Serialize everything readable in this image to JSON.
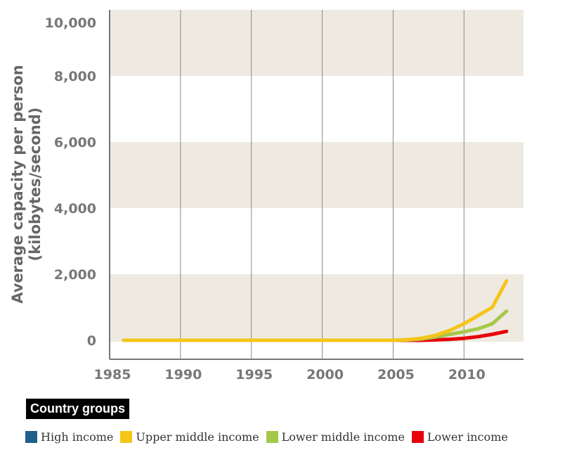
{
  "chart_data": {
    "type": "line",
    "title": "",
    "xlabel": "",
    "ylabel": [
      "Average capacity per person",
      "(kilobytes/second)"
    ],
    "xlim": [
      1985,
      2014.2
    ],
    "ylim": [
      0,
      10000
    ],
    "xticks": [
      1985,
      1990,
      1995,
      2000,
      2005,
      2010
    ],
    "xtick_labels": [
      "1985",
      "1990",
      "1995",
      "2000",
      "2005",
      "2010"
    ],
    "yticks": [
      0,
      2000,
      4000,
      6000,
      8000,
      10000
    ],
    "ytick_labels": [
      "0",
      "2,000",
      "4,000",
      "6,000",
      "8,000",
      "10,000"
    ],
    "grid": "vertical lines at x ticks; alternating shaded horizontal bands",
    "band_color": "#eeeae1",
    "legend_title": "Country groups",
    "legend_placement": "bottom",
    "series": [
      {
        "name": "High income",
        "color": "#1f5f8b",
        "x": [],
        "y": []
      },
      {
        "name": "Upper middle income",
        "color": "#f5c518",
        "x": [
          1986,
          2000,
          2005,
          2006,
          2007,
          2008,
          2009,
          2010,
          2011,
          2012,
          2013
        ],
        "y": [
          0,
          0,
          0,
          20,
          60,
          150,
          300,
          500,
          750,
          1000,
          1800
        ]
      },
      {
        "name": "Lower middle income",
        "color": "#a6c84a",
        "x": [
          1986,
          2000,
          2005,
          2006,
          2007,
          2008,
          2009,
          2010,
          2011,
          2012,
          2013
        ],
        "y": [
          0,
          0,
          0,
          10,
          40,
          100,
          180,
          260,
          350,
          500,
          880
        ]
      },
      {
        "name": "Lower income",
        "color": "#e8000b",
        "x": [
          1986,
          2000,
          2005,
          2006,
          2007,
          2008,
          2009,
          2010,
          2011,
          2012,
          2013
        ],
        "y": [
          0,
          0,
          0,
          0,
          0,
          10,
          30,
          60,
          110,
          180,
          270
        ]
      }
    ]
  }
}
